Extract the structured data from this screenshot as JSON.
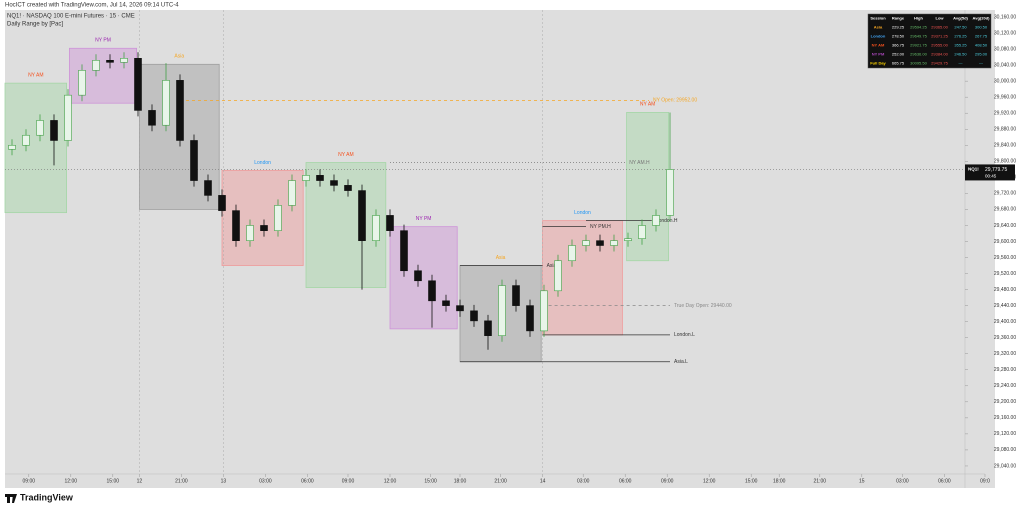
{
  "header": {
    "credit": "HocICT created with TradingView.com, Jul 14, 2026 09:14 UTC-4"
  },
  "footer": {
    "brand": "TradingView"
  },
  "table": {
    "columns": [
      "Session",
      "Range",
      "High",
      "Low",
      "Avg(5d)",
      "Avg(20d)"
    ],
    "rows": [
      [
        "Asia",
        "229.25",
        "29594.25",
        "29365.00",
        "247.50",
        "300.50"
      ],
      [
        "London",
        "278.50",
        "29649.75",
        "29371.25",
        "276.25",
        "267.75"
      ],
      [
        "NY AM",
        "366.75",
        "29921.75",
        "29555.00",
        "355.25",
        "408.50"
      ],
      [
        "NY PM",
        "252.00",
        "29636.00",
        "29384.00",
        "246.50",
        "295.00"
      ],
      [
        "Full Day",
        "665.75",
        "30095.50",
        "29429.75",
        "—",
        "—"
      ]
    ],
    "row_colors": [
      "#f5a623",
      "#42a5f5",
      "#f4511e",
      "#ab47bc",
      "#ffd600"
    ]
  },
  "chart_data": {
    "type": "candlestick",
    "title": "NQ1! · NASDAQ 100 E-mini Futures · 15 · CME",
    "subtitle": "Daily Range by [Pac]",
    "up_color": "#43a047",
    "down_color": "#111111",
    "x": [
      0.5,
      1.5,
      2.5,
      3.5,
      4.5,
      5.5,
      6.5,
      7.5,
      8.5,
      9.5,
      10.5,
      11.5,
      12.5,
      13.5,
      14.5,
      15.5,
      16.5,
      17.5,
      18.5,
      19.5,
      20.5,
      21.5,
      22.5,
      23.5,
      24.5,
      25.5,
      26.5,
      27.5,
      28.5,
      29.5,
      30.5,
      31.5,
      32.5,
      33.5,
      34.5,
      35.5,
      36.5,
      37.5,
      38.5,
      39.5,
      40.5,
      41.5,
      42.5,
      43.5,
      44.5,
      45.5,
      46.5,
      47.5
    ],
    "open": [
      29830,
      29840,
      29865,
      29902,
      29852,
      29965,
      30027,
      30052,
      30047,
      30057,
      29927,
      29890,
      30002,
      29852,
      29752,
      29715,
      29677,
      29602,
      29640,
      29627,
      29690,
      29752,
      29765,
      29752,
      29740,
      29727,
      29602,
      29665,
      29627,
      29527,
      29502,
      29452,
      29440,
      29427,
      29402,
      29365,
      29490,
      29440,
      29377,
      29477,
      29552,
      29590,
      29602,
      29590,
      29602,
      29607,
      29640,
      29665
    ],
    "high": [
      29855,
      29880,
      29917,
      29917,
      29980,
      30042,
      30067,
      30067,
      30072,
      30072,
      29942,
      30045,
      30017,
      29867,
      29767,
      29730,
      29692,
      29655,
      29655,
      29705,
      29767,
      29780,
      29780,
      29767,
      29755,
      29742,
      29680,
      29680,
      29642,
      29542,
      29517,
      29467,
      29455,
      29442,
      29417,
      29505,
      29505,
      29455,
      29492,
      29567,
      29605,
      29617,
      29617,
      29617,
      29622,
      29655,
      29680,
      29921.75
    ],
    "low": [
      29815,
      29825,
      29850,
      29790,
      29837,
      29950,
      30012,
      30032,
      30032,
      29912,
      29875,
      29875,
      29837,
      29737,
      29700,
      29662,
      29587,
      29587,
      29612,
      29612,
      29675,
      29737,
      29737,
      29725,
      29712,
      29480,
      29587,
      29612,
      29512,
      29487,
      29385,
      29425,
      29412,
      29387,
      29330,
      29350,
      29425,
      29362,
      29362,
      29462,
      29537,
      29575,
      29575,
      29575,
      29587,
      29592,
      29625,
      29650
    ],
    "close": [
      29840,
      29865,
      29902,
      29852,
      29965,
      30027,
      30052,
      30047,
      30057,
      29927,
      29890,
      30002,
      29852,
      29752,
      29715,
      29677,
      29602,
      29640,
      29627,
      29690,
      29752,
      29765,
      29752,
      29740,
      29727,
      29602,
      29665,
      29627,
      29527,
      29502,
      29452,
      29440,
      29427,
      29402,
      29365,
      29490,
      29440,
      29377,
      29477,
      29552,
      29590,
      29602,
      29590,
      29602,
      29607,
      29640,
      29665,
      29779.75
    ],
    "xlim": [
      0,
      70
    ],
    "xticks": [
      {
        "value": 1.7,
        "label": "09:00"
      },
      {
        "value": 4.7,
        "label": "12:00"
      },
      {
        "value": 7.7,
        "label": "15:00"
      },
      {
        "value": 9.6,
        "label": "12"
      },
      {
        "value": 12.6,
        "label": "21:00"
      },
      {
        "value": 15.6,
        "label": "13"
      },
      {
        "value": 18.6,
        "label": "03:00"
      },
      {
        "value": 21.6,
        "label": "06:00"
      },
      {
        "value": 24.5,
        "label": "09:00"
      },
      {
        "value": 27.5,
        "label": "12:00"
      },
      {
        "value": 30.4,
        "label": "15:00"
      },
      {
        "value": 32.5,
        "label": "18:00"
      },
      {
        "value": 35.4,
        "label": "21:00"
      },
      {
        "value": 38.4,
        "label": "14"
      },
      {
        "value": 41.3,
        "label": "03:00"
      },
      {
        "value": 44.3,
        "label": "06:00"
      },
      {
        "value": 47.3,
        "label": "09:00"
      },
      {
        "value": 50.3,
        "label": "12:00"
      },
      {
        "value": 53.3,
        "label": "15:00"
      },
      {
        "value": 55.3,
        "label": "18:00"
      },
      {
        "value": 58.2,
        "label": "21:00"
      },
      {
        "value": 61.2,
        "label": "15"
      },
      {
        "value": 64.1,
        "label": "03:00"
      },
      {
        "value": 67.1,
        "label": "06:00"
      },
      {
        "value": 70,
        "label": "09:0"
      }
    ],
    "day_separators": [
      9.6,
      15.6,
      38.4
    ],
    "ylim": [
      28985,
      30177.5
    ],
    "yticks": [
      {
        "value": 30160,
        "label": "30,160.00"
      },
      {
        "value": 30120,
        "label": "30,120.00"
      },
      {
        "value": 30080,
        "label": "30,080.00"
      },
      {
        "value": 30040,
        "label": "30,040.00"
      },
      {
        "value": 30000,
        "label": "30,000.00"
      },
      {
        "value": 29960,
        "label": "29,960.00"
      },
      {
        "value": 29920,
        "label": "29,920.00"
      },
      {
        "value": 29880,
        "label": "29,880.00"
      },
      {
        "value": 29840,
        "label": "29,840.00"
      },
      {
        "value": 29800,
        "label": "29,800.00"
      },
      {
        "value": 29760,
        "label": "29,760.00"
      },
      {
        "value": 29720,
        "label": "29,720.00"
      },
      {
        "value": 29680,
        "label": "29,680.00"
      },
      {
        "value": 29640,
        "label": "29,640.00"
      },
      {
        "value": 29600,
        "label": "29,600.00"
      },
      {
        "value": 29560,
        "label": "29,560.00"
      },
      {
        "value": 29520,
        "label": "29,520.00"
      },
      {
        "value": 29480,
        "label": "29,480.00"
      },
      {
        "value": 29440,
        "label": "29,440.00"
      },
      {
        "value": 29400,
        "label": "29,400.00"
      },
      {
        "value": 29360,
        "label": "29,360.00"
      },
      {
        "value": 29320,
        "label": "29,320.00"
      },
      {
        "value": 29280,
        "label": "29,280.00"
      },
      {
        "value": 29240,
        "label": "29,240.00"
      },
      {
        "value": 29200,
        "label": "29,200.00"
      },
      {
        "value": 29160,
        "label": "29,160.00"
      },
      {
        "value": 29120,
        "label": "29,120.00"
      },
      {
        "value": 29080,
        "label": "29,080.00"
      },
      {
        "value": 29040,
        "label": "29,040.00"
      }
    ],
    "symbol": "NQ1!",
    "last_price": {
      "value": 29779.75,
      "label": "29,779.75"
    },
    "countdown": "00:45",
    "sessions": [
      {
        "name": "NY AM",
        "x0": 0,
        "x1": 4.4,
        "high": 29995,
        "low": 29672,
        "color": "#f4511e",
        "fill": "#a5d6a7"
      },
      {
        "name": "NY PM",
        "x0": 4.6,
        "x1": 9.4,
        "high": 30082,
        "low": 29945,
        "color": "#9c27b0",
        "fill": "#ce93d8"
      },
      {
        "name": "Asia",
        "x0": 9.6,
        "x1": 15.3,
        "high": 30042,
        "low": 29680,
        "color": "#f5a623",
        "fill": "#9e9e9e"
      },
      {
        "name": "London",
        "x0": 15.5,
        "x1": 21.3,
        "high": 29777,
        "low": 29540,
        "color": "#2196f3",
        "fill": "#ef9a9a"
      },
      {
        "name": "NY AM",
        "x0": 21.5,
        "x1": 27.2,
        "high": 29797,
        "low": 29485,
        "color": "#f4511e",
        "fill": "#a5d6a7"
      },
      {
        "name": "NY PM",
        "x0": 27.5,
        "x1": 32.3,
        "high": 29637,
        "low": 29382,
        "color": "#9c27b0",
        "fill": "#ce93d8"
      },
      {
        "name": "Asia",
        "x0": 32.5,
        "x1": 38.3,
        "high": 29540,
        "low": 29300,
        "color": "#f5a623",
        "fill": "#9e9e9e"
      },
      {
        "name": "London",
        "x0": 38.4,
        "x1": 44.1,
        "high": 29652,
        "low": 29367,
        "color": "#2196f3",
        "fill": "#ef9a9a"
      },
      {
        "name": "NY AM",
        "x0": 44.4,
        "x1": 47.4,
        "high": 29922,
        "low": 29552,
        "color": "#f4511e",
        "fill": "#a5d6a7"
      }
    ],
    "levels": [
      {
        "label": "NY Open: 29952.00",
        "value": 29952,
        "x0": 12.5,
        "x1": 46,
        "color": "#f5a623",
        "style": "dashed"
      },
      {
        "label": "True Day Open: 29440.00",
        "value": 29440,
        "x0": 38.4,
        "x1": 47.5,
        "color": "#888888",
        "style": "dashed"
      },
      {
        "label": "London.L",
        "value": 29367,
        "x0": 38.4,
        "x1": 47.5,
        "color": "#333333",
        "style": "solid"
      },
      {
        "label": "Asia.L",
        "value": 29300,
        "x0": 32.5,
        "x1": 47.5,
        "color": "#333333",
        "style": "solid"
      },
      {
        "label": "NY AM.H",
        "value": 29797,
        "x0": 27.5,
        "x1": 44.3,
        "color": "#777777",
        "style": "dotted"
      },
      {
        "label": "NY PM.H",
        "value": 29637,
        "x0": 38.4,
        "x1": 41.5,
        "color": "#333333",
        "style": "solid"
      },
      {
        "label": "London.H",
        "value": 29652,
        "x0": 41.5,
        "x1": 46.2,
        "color": "#333333",
        "style": "solid"
      },
      {
        "label": "Asia.H",
        "value": 29540,
        "x0": 32.5,
        "x1": 38.4,
        "color": "#333333",
        "style": "solid"
      }
    ]
  }
}
